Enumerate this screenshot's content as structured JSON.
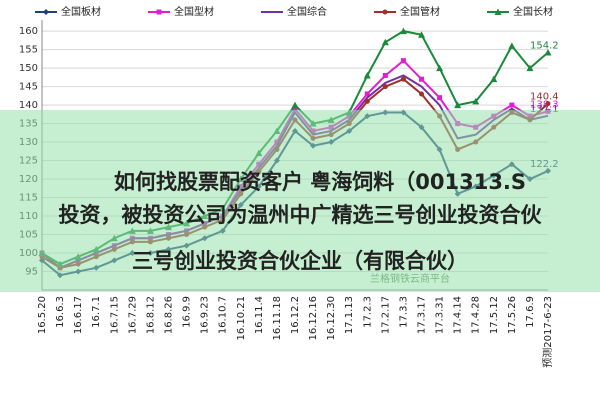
{
  "chart_data": {
    "type": "line",
    "categories": [
      "16.5.20",
      "16.6.3",
      "16.6.17",
      "16.7.1",
      "16.7.15",
      "16.7.29",
      "16.8.12",
      "16.8.26",
      "16.9.9",
      "16.9.23",
      "16.10.7",
      "16.10.21",
      "16.11.4",
      "16.11.18",
      "16.12.2",
      "16.12.16",
      "16.12.30",
      "17.1.13",
      "17.2.3",
      "17.2.17",
      "17.3.3",
      "17.3.17",
      "17.3.31",
      "17.4.14",
      "17.4.28",
      "17.5.12",
      "17.5.26",
      "17.6.9",
      "预测2017-6-23"
    ],
    "series": [
      {
        "name": "全国板材",
        "color": "#1f3f7f",
        "marker": "diamond",
        "values": [
          98,
          94,
          95,
          96,
          98,
          100,
          100,
          101,
          102,
          104,
          106,
          113,
          118,
          125,
          133,
          129,
          130,
          133,
          137,
          138,
          138,
          134,
          128,
          116,
          118,
          121,
          124,
          120,
          122.2
        ]
      },
      {
        "name": "全国型材",
        "color": "#e020d0",
        "marker": "square",
        "values": [
          100,
          96,
          98,
          100,
          102,
          104,
          104,
          105,
          106,
          108,
          110,
          118,
          124,
          130,
          139,
          133,
          134,
          137,
          143,
          148,
          152,
          147,
          142,
          135,
          134,
          137,
          140,
          137,
          138.3
        ]
      },
      {
        "name": "全国综合",
        "color": "#7030a0",
        "marker": "none",
        "values": [
          100,
          96,
          98,
          100,
          102,
          104,
          104,
          105,
          106,
          108,
          110,
          117,
          123,
          129,
          138,
          132,
          133,
          136,
          142,
          146,
          148,
          145,
          140,
          131,
          132,
          136,
          139,
          136,
          137.1
        ]
      },
      {
        "name": "全国管材",
        "color": "#a0302a",
        "marker": "circle",
        "values": [
          99,
          96,
          97,
          99,
          101,
          103,
          103,
          104,
          105,
          107,
          109,
          116,
          122,
          128,
          136,
          131,
          132,
          135,
          141,
          145,
          147,
          143,
          137,
          128,
          130,
          134,
          138,
          136,
          140.4
        ]
      },
      {
        "name": "全国长材",
        "color": "#1a8a3a",
        "marker": "triangle",
        "values": [
          100,
          97,
          99,
          101,
          104,
          106,
          106,
          107,
          108,
          110,
          112,
          120,
          127,
          133,
          140,
          135,
          136,
          138,
          148,
          157,
          160,
          159,
          150,
          140,
          141,
          147,
          156,
          150,
          154.2
        ]
      }
    ],
    "ylim": [
      90,
      163
    ],
    "yticks": [
      95,
      100,
      105,
      110,
      115,
      120,
      125,
      130,
      135,
      140,
      145,
      150,
      155,
      160
    ],
    "grid": true
  },
  "watermark": "兰格钢铁云商平台",
  "overlay": [
    "如何找股票配资客户 粤海饲料（001313.S",
    "投资，被投资公司为温州中广精选三号创业投资合伙",
    "三号创业投资合伙企业（有限合伙）"
  ]
}
